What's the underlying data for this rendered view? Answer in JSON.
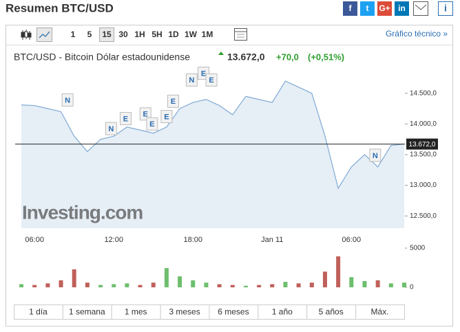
{
  "header": {
    "title": "Resumen BTC/USD",
    "share": [
      "f",
      "t",
      "G+",
      "in"
    ],
    "info": "i"
  },
  "toolbar": {
    "intervals": [
      "1",
      "5",
      "15",
      "30",
      "1H",
      "5H",
      "1D",
      "1W",
      "1M"
    ],
    "active_index": 2,
    "link": "Gráfico técnico »"
  },
  "quote": {
    "name": "BTC/USD - Bitcoin Dólar estadounidense",
    "price": "13.672,0",
    "change": "+70,0",
    "change_pct": "(+0,51%)"
  },
  "chart_data": {
    "type": "line",
    "watermark": "Investing.com",
    "categories": [
      null,
      "06:00",
      null,
      null,
      null,
      null,
      null,
      "12:00",
      null,
      null,
      null,
      null,
      null,
      "18:00",
      null,
      null,
      null,
      null,
      null,
      "Jan 11",
      null,
      null,
      null,
      null,
      null,
      "06:00",
      null,
      null,
      null,
      null
    ],
    "series": [
      {
        "color": "#7fa9d3",
        "fill": "#e6eef6",
        "values": [
          14310,
          14300,
          14250,
          14200,
          13800,
          13550,
          13750,
          13800,
          13950,
          13900,
          13850,
          13950,
          14250,
          14350,
          14400,
          14300,
          14150,
          14450,
          14400,
          14350,
          14700,
          14600,
          14500,
          13800,
          12950,
          13300,
          13500,
          13300,
          13650,
          13672
        ]
      }
    ],
    "ylim": [
      12300,
      14900
    ],
    "yticks": [
      {
        "value": 12500,
        "label": "12.500,0"
      },
      {
        "value": 13000,
        "label": "13.000,0"
      },
      {
        "value": 13500,
        "label": "13.500,0"
      },
      {
        "value": 14000,
        "label": "14.000,0"
      },
      {
        "value": 14500,
        "label": "14.500,0"
      }
    ],
    "last": {
      "value": 13672,
      "label": "13.672,0",
      "color": "#222"
    },
    "annotations": [
      {
        "text": "N",
        "x": 3.5,
        "y": 14391
      },
      {
        "text": "N",
        "x": 6.8,
        "y": 13924
      },
      {
        "text": "E",
        "x": 7.9,
        "y": 14087
      },
      {
        "text": "E",
        "x": 9.4,
        "y": 14163
      },
      {
        "text": "E",
        "x": 9.9,
        "y": 14000
      },
      {
        "text": "E",
        "x": 11.0,
        "y": 14120
      },
      {
        "text": "E",
        "x": 11.5,
        "y": 14370
      },
      {
        "text": "N",
        "x": 12.9,
        "y": 14717
      },
      {
        "text": "E",
        "x": 13.8,
        "y": 14826
      },
      {
        "text": "E",
        "x": 14.4,
        "y": 14717
      },
      {
        "text": "N",
        "x": 26.8,
        "y": 13489
      }
    ],
    "volume": {
      "values": [
        400,
        300,
        500,
        900,
        2300,
        600,
        300,
        400,
        500,
        300,
        600,
        2450,
        1400,
        900,
        600,
        400,
        300,
        200,
        300,
        400,
        700,
        500,
        600,
        2000,
        3950,
        1300,
        800,
        900,
        500,
        600
      ],
      "ylim": [
        0,
        5000
      ],
      "yticks": [
        0,
        5000
      ],
      "up_color": "#6dbf6d",
      "down_color": "#c0605a"
    },
    "ranges": [
      "1 día",
      "1 semana",
      "1 mes",
      "3 meses",
      "6 meses",
      "1 año",
      "5 años",
      "Máx."
    ]
  }
}
